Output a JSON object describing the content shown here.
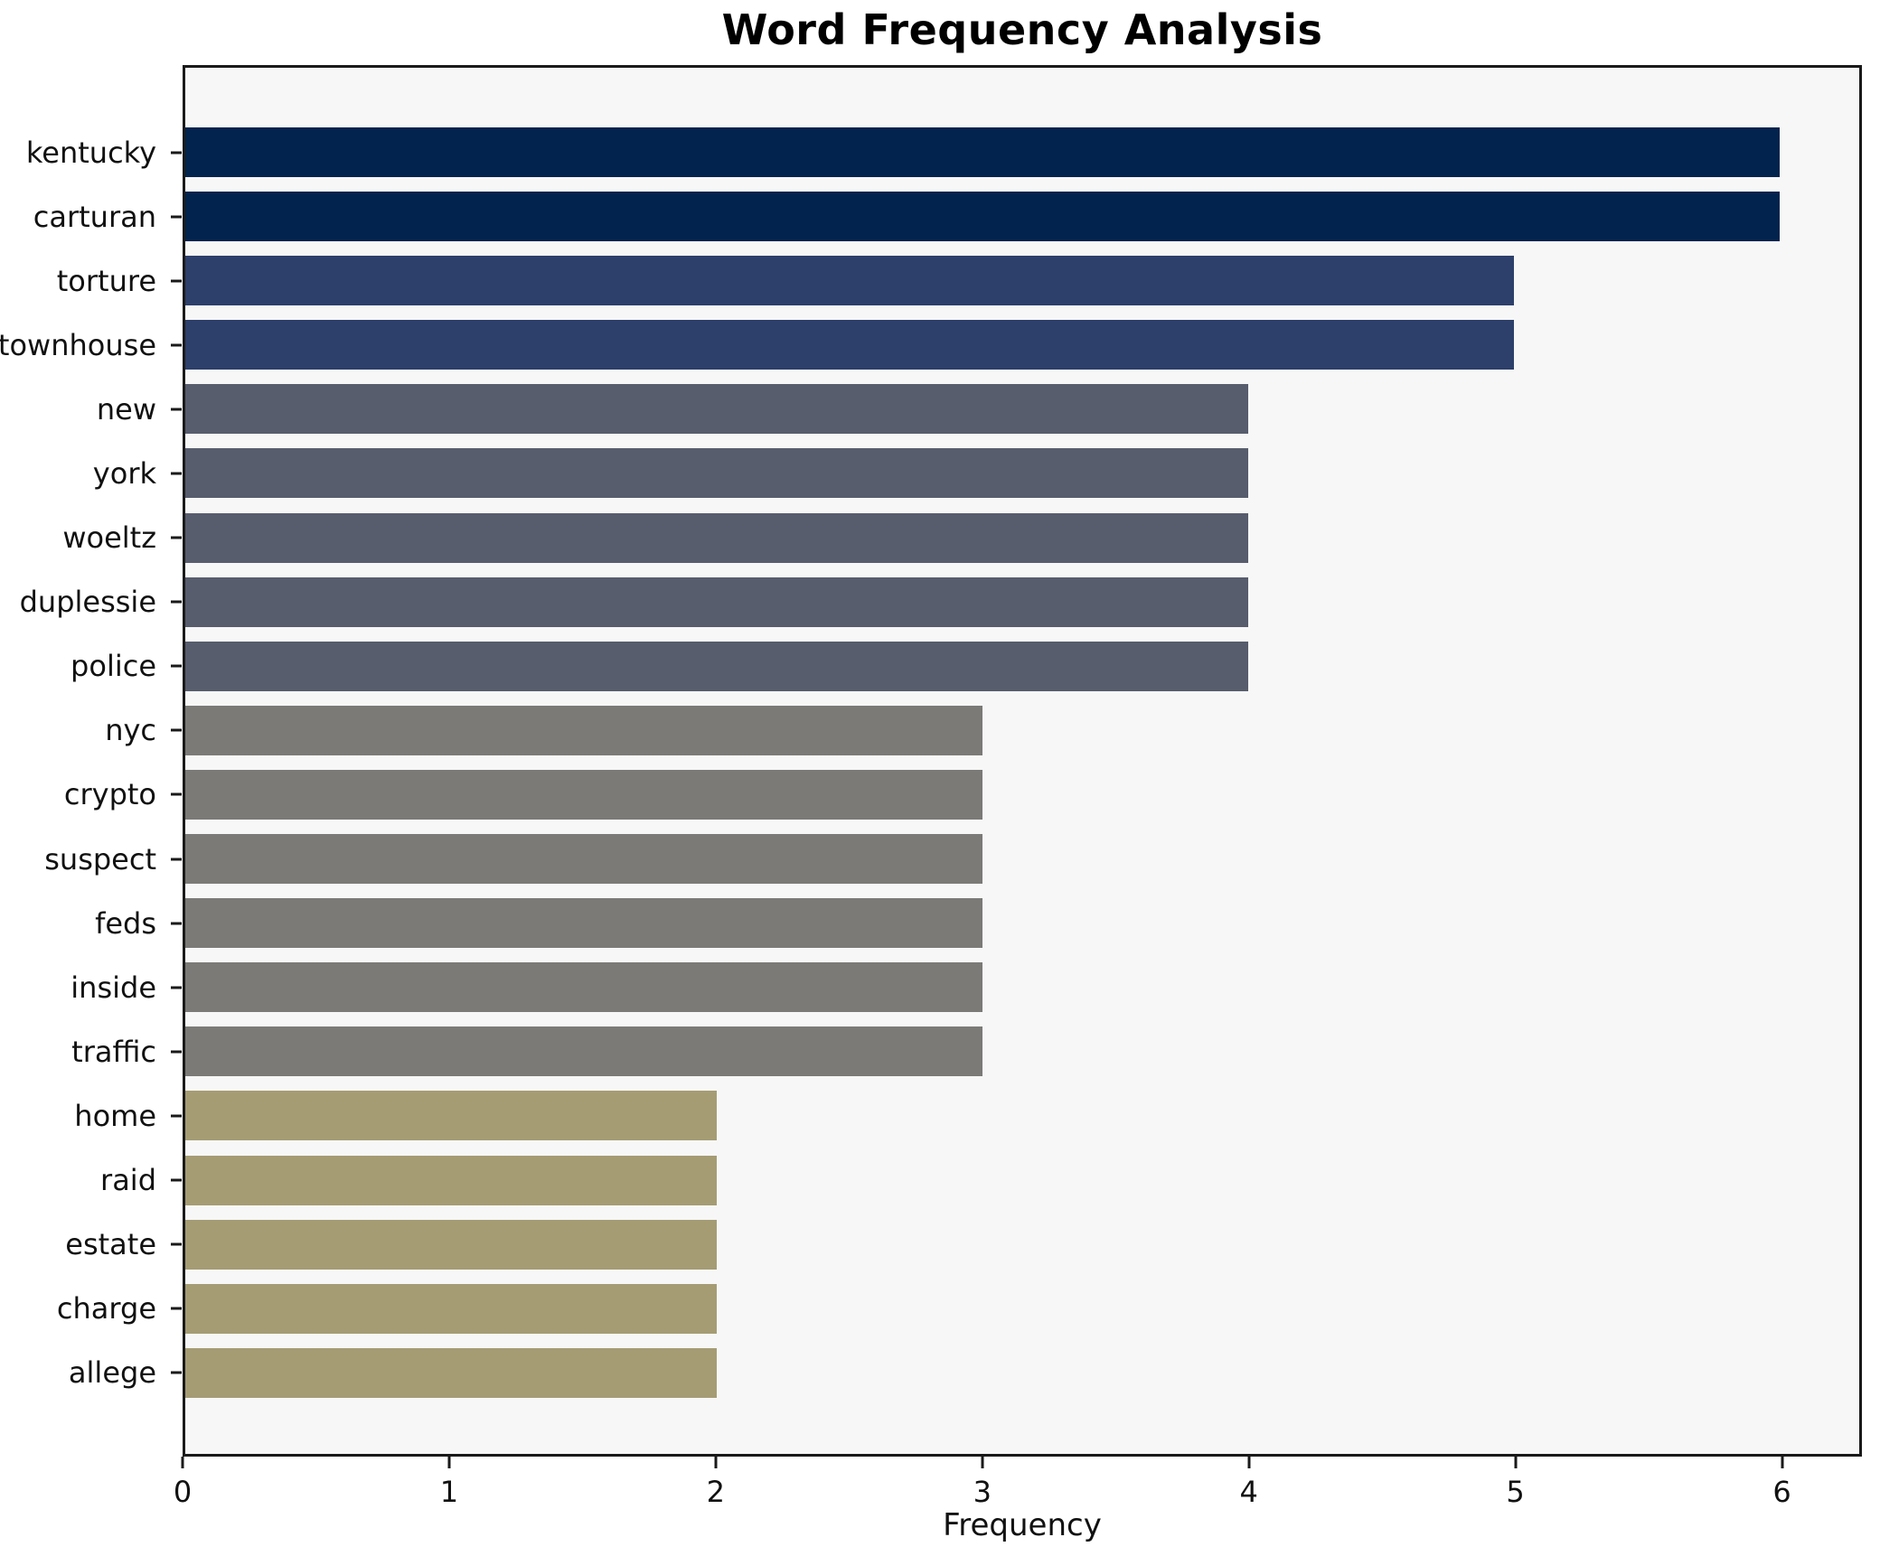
{
  "chart_data": {
    "type": "bar",
    "orientation": "horizontal",
    "title": "Word Frequency Analysis",
    "xlabel": "Frequency",
    "ylabel": "",
    "categories": [
      "kentucky",
      "carturan",
      "torture",
      "townhouse",
      "new",
      "york",
      "woeltz",
      "duplessie",
      "police",
      "nyc",
      "crypto",
      "suspect",
      "feds",
      "inside",
      "traffic",
      "home",
      "raid",
      "estate",
      "charge",
      "allege"
    ],
    "values": [
      6,
      6,
      5,
      5,
      4,
      4,
      4,
      4,
      4,
      3,
      3,
      3,
      3,
      3,
      3,
      2,
      2,
      2,
      2,
      2
    ],
    "xlim": [
      0,
      6.3
    ],
    "xticks": [
      0,
      1,
      2,
      3,
      4,
      5,
      6
    ],
    "grid": false,
    "legend": null,
    "colors": {
      "bar_by_value": {
        "6": "#02234d",
        "5": "#2d3f6b",
        "4": "#575d6d",
        "3": "#7b7a77",
        "2": "#a59c74"
      },
      "plot_background": "#f7f7f7",
      "figure_background": "#ffffff",
      "spine": "#1a1a1a",
      "text": "#111111"
    }
  }
}
